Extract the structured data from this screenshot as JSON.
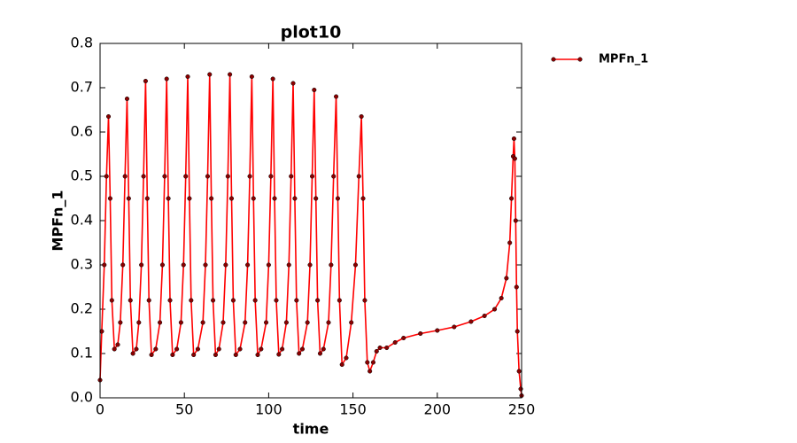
{
  "chart_data": {
    "type": "line",
    "title": "plot10",
    "xlabel": "time",
    "ylabel": "MPFn_1",
    "x": [
      0,
      1,
      2.5,
      3.8,
      5,
      6,
      7,
      8.5,
      10.5,
      12,
      13.5,
      14.8,
      16,
      17,
      18,
      19.5,
      21.5,
      23,
      24.5,
      25.8,
      27,
      28,
      29,
      30.5,
      33,
      35.5,
      37,
      38.3,
      39.5,
      40.5,
      41.5,
      43,
      45.5,
      48,
      49.5,
      50.8,
      52,
      53,
      54,
      55.5,
      58,
      61,
      62.5,
      63.8,
      65,
      66,
      67,
      68.5,
      70.5,
      73,
      74.5,
      75.8,
      77,
      78,
      79,
      80.5,
      83,
      86,
      87.5,
      88.8,
      90,
      91,
      92,
      93.5,
      95.5,
      98.5,
      100,
      101.3,
      102.5,
      103.5,
      104.5,
      106,
      108,
      110.5,
      112,
      113.3,
      114.5,
      115.5,
      116.5,
      118,
      120,
      123,
      124.5,
      125.8,
      127,
      128,
      129,
      130.5,
      132.5,
      135.5,
      137,
      138.5,
      140,
      141,
      142,
      143.5,
      146,
      149,
      151.5,
      153.5,
      155,
      156,
      157,
      158.5,
      160,
      162,
      164,
      166,
      170,
      175,
      180,
      190,
      200,
      210,
      220,
      228,
      234,
      238,
      241,
      243,
      244,
      245,
      245.5,
      246,
      246.5,
      247,
      247.5,
      248.5,
      249.5,
      250
    ],
    "series": [
      {
        "name": "MPFn_1",
        "color": "#ff0000",
        "marker_color": "#8b0000",
        "values": [
          0.04,
          0.15,
          0.3,
          0.5,
          0.635,
          0.45,
          0.22,
          0.11,
          0.12,
          0.17,
          0.3,
          0.5,
          0.675,
          0.45,
          0.22,
          0.1,
          0.11,
          0.17,
          0.3,
          0.5,
          0.715,
          0.45,
          0.22,
          0.097,
          0.11,
          0.17,
          0.3,
          0.5,
          0.72,
          0.45,
          0.22,
          0.097,
          0.11,
          0.17,
          0.3,
          0.5,
          0.725,
          0.45,
          0.22,
          0.097,
          0.11,
          0.17,
          0.3,
          0.5,
          0.73,
          0.45,
          0.22,
          0.097,
          0.11,
          0.17,
          0.3,
          0.5,
          0.73,
          0.45,
          0.22,
          0.097,
          0.11,
          0.17,
          0.3,
          0.5,
          0.725,
          0.45,
          0.22,
          0.097,
          0.11,
          0.17,
          0.3,
          0.5,
          0.72,
          0.45,
          0.22,
          0.098,
          0.11,
          0.17,
          0.3,
          0.5,
          0.71,
          0.45,
          0.22,
          0.1,
          0.11,
          0.17,
          0.3,
          0.5,
          0.695,
          0.45,
          0.22,
          0.1,
          0.11,
          0.17,
          0.3,
          0.5,
          0.68,
          0.45,
          0.22,
          0.075,
          0.09,
          0.17,
          0.3,
          0.5,
          0.635,
          0.45,
          0.22,
          0.08,
          0.06,
          0.08,
          0.105,
          0.113,
          0.113,
          0.125,
          0.135,
          0.145,
          0.152,
          0.16,
          0.172,
          0.185,
          0.2,
          0.225,
          0.27,
          0.35,
          0.45,
          0.545,
          0.585,
          0.54,
          0.4,
          0.25,
          0.15,
          0.06,
          0.02,
          0.005
        ]
      }
    ],
    "xlim": [
      0,
      250
    ],
    "xticks": [
      0,
      50,
      100,
      150,
      200,
      250
    ],
    "ylim": [
      0,
      0.8
    ],
    "yticks": [
      {
        "value": 0,
        "label": "0.0"
      },
      0.1,
      0.2,
      0.3,
      0.4,
      0.5,
      0.6,
      0.7,
      0.8
    ],
    "legend": "outside-upper-right"
  }
}
